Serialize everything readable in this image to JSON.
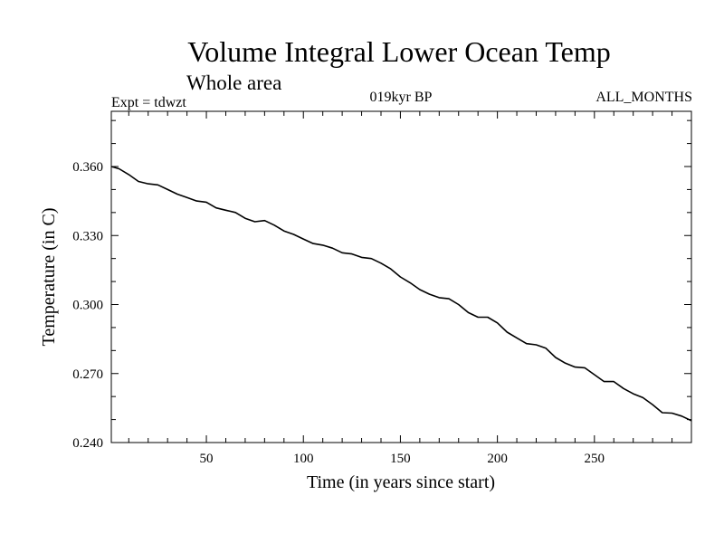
{
  "chart_data": {
    "type": "line",
    "title": "Volume Integral Lower Ocean Temp",
    "subtitle": "Whole area",
    "label_left": "Expt = tdwzt",
    "label_center": "019kyr BP",
    "label_right": "ALL_MONTHS",
    "xlabel": "Time (in years since start)",
    "ylabel": "Temperature (in C)",
    "xlim": [
      1,
      300
    ],
    "ylim": [
      0.24,
      0.384
    ],
    "xticks": [
      50,
      100,
      150,
      200,
      250
    ],
    "xtick_labels": [
      "50",
      "100",
      "150",
      "200",
      "250"
    ],
    "yticks": [
      0.24,
      0.27,
      0.3,
      0.33,
      0.36
    ],
    "ytick_labels": [
      "0.240",
      "0.270",
      "0.300",
      "0.330",
      "0.360"
    ],
    "grid": false,
    "line_color": "#000000",
    "series": [
      {
        "x": [
          1,
          5,
          10,
          15,
          20,
          25,
          30,
          35,
          40,
          45,
          50,
          55,
          60,
          65,
          70,
          75,
          80,
          85,
          90,
          95,
          100,
          105,
          110,
          115,
          120,
          125,
          130,
          135,
          140,
          145,
          150,
          155,
          160,
          165,
          170,
          175,
          180,
          185,
          190,
          195,
          200,
          205,
          210,
          215,
          220,
          225,
          230,
          235,
          240,
          245,
          250,
          255,
          260,
          265,
          270,
          275,
          280,
          285,
          290,
          295,
          300
        ],
        "values": [
          0.36,
          0.359,
          0.3565,
          0.3535,
          0.3525,
          0.352,
          0.35,
          0.348,
          0.3465,
          0.345,
          0.3445,
          0.342,
          0.341,
          0.34,
          0.3375,
          0.336,
          0.3365,
          0.3345,
          0.332,
          0.3305,
          0.3285,
          0.3265,
          0.3258,
          0.3245,
          0.3225,
          0.322,
          0.3205,
          0.32,
          0.318,
          0.3155,
          0.312,
          0.3095,
          0.3065,
          0.3045,
          0.303,
          0.3025,
          0.3,
          0.2965,
          0.2945,
          0.2945,
          0.292,
          0.288,
          0.2855,
          0.283,
          0.2825,
          0.281,
          0.277,
          0.2745,
          0.2728,
          0.2725,
          0.2695,
          0.2665,
          0.2665,
          0.2635,
          0.2612,
          0.2595,
          0.2565,
          0.253,
          0.2528,
          0.2515,
          0.2495
        ]
      }
    ]
  }
}
